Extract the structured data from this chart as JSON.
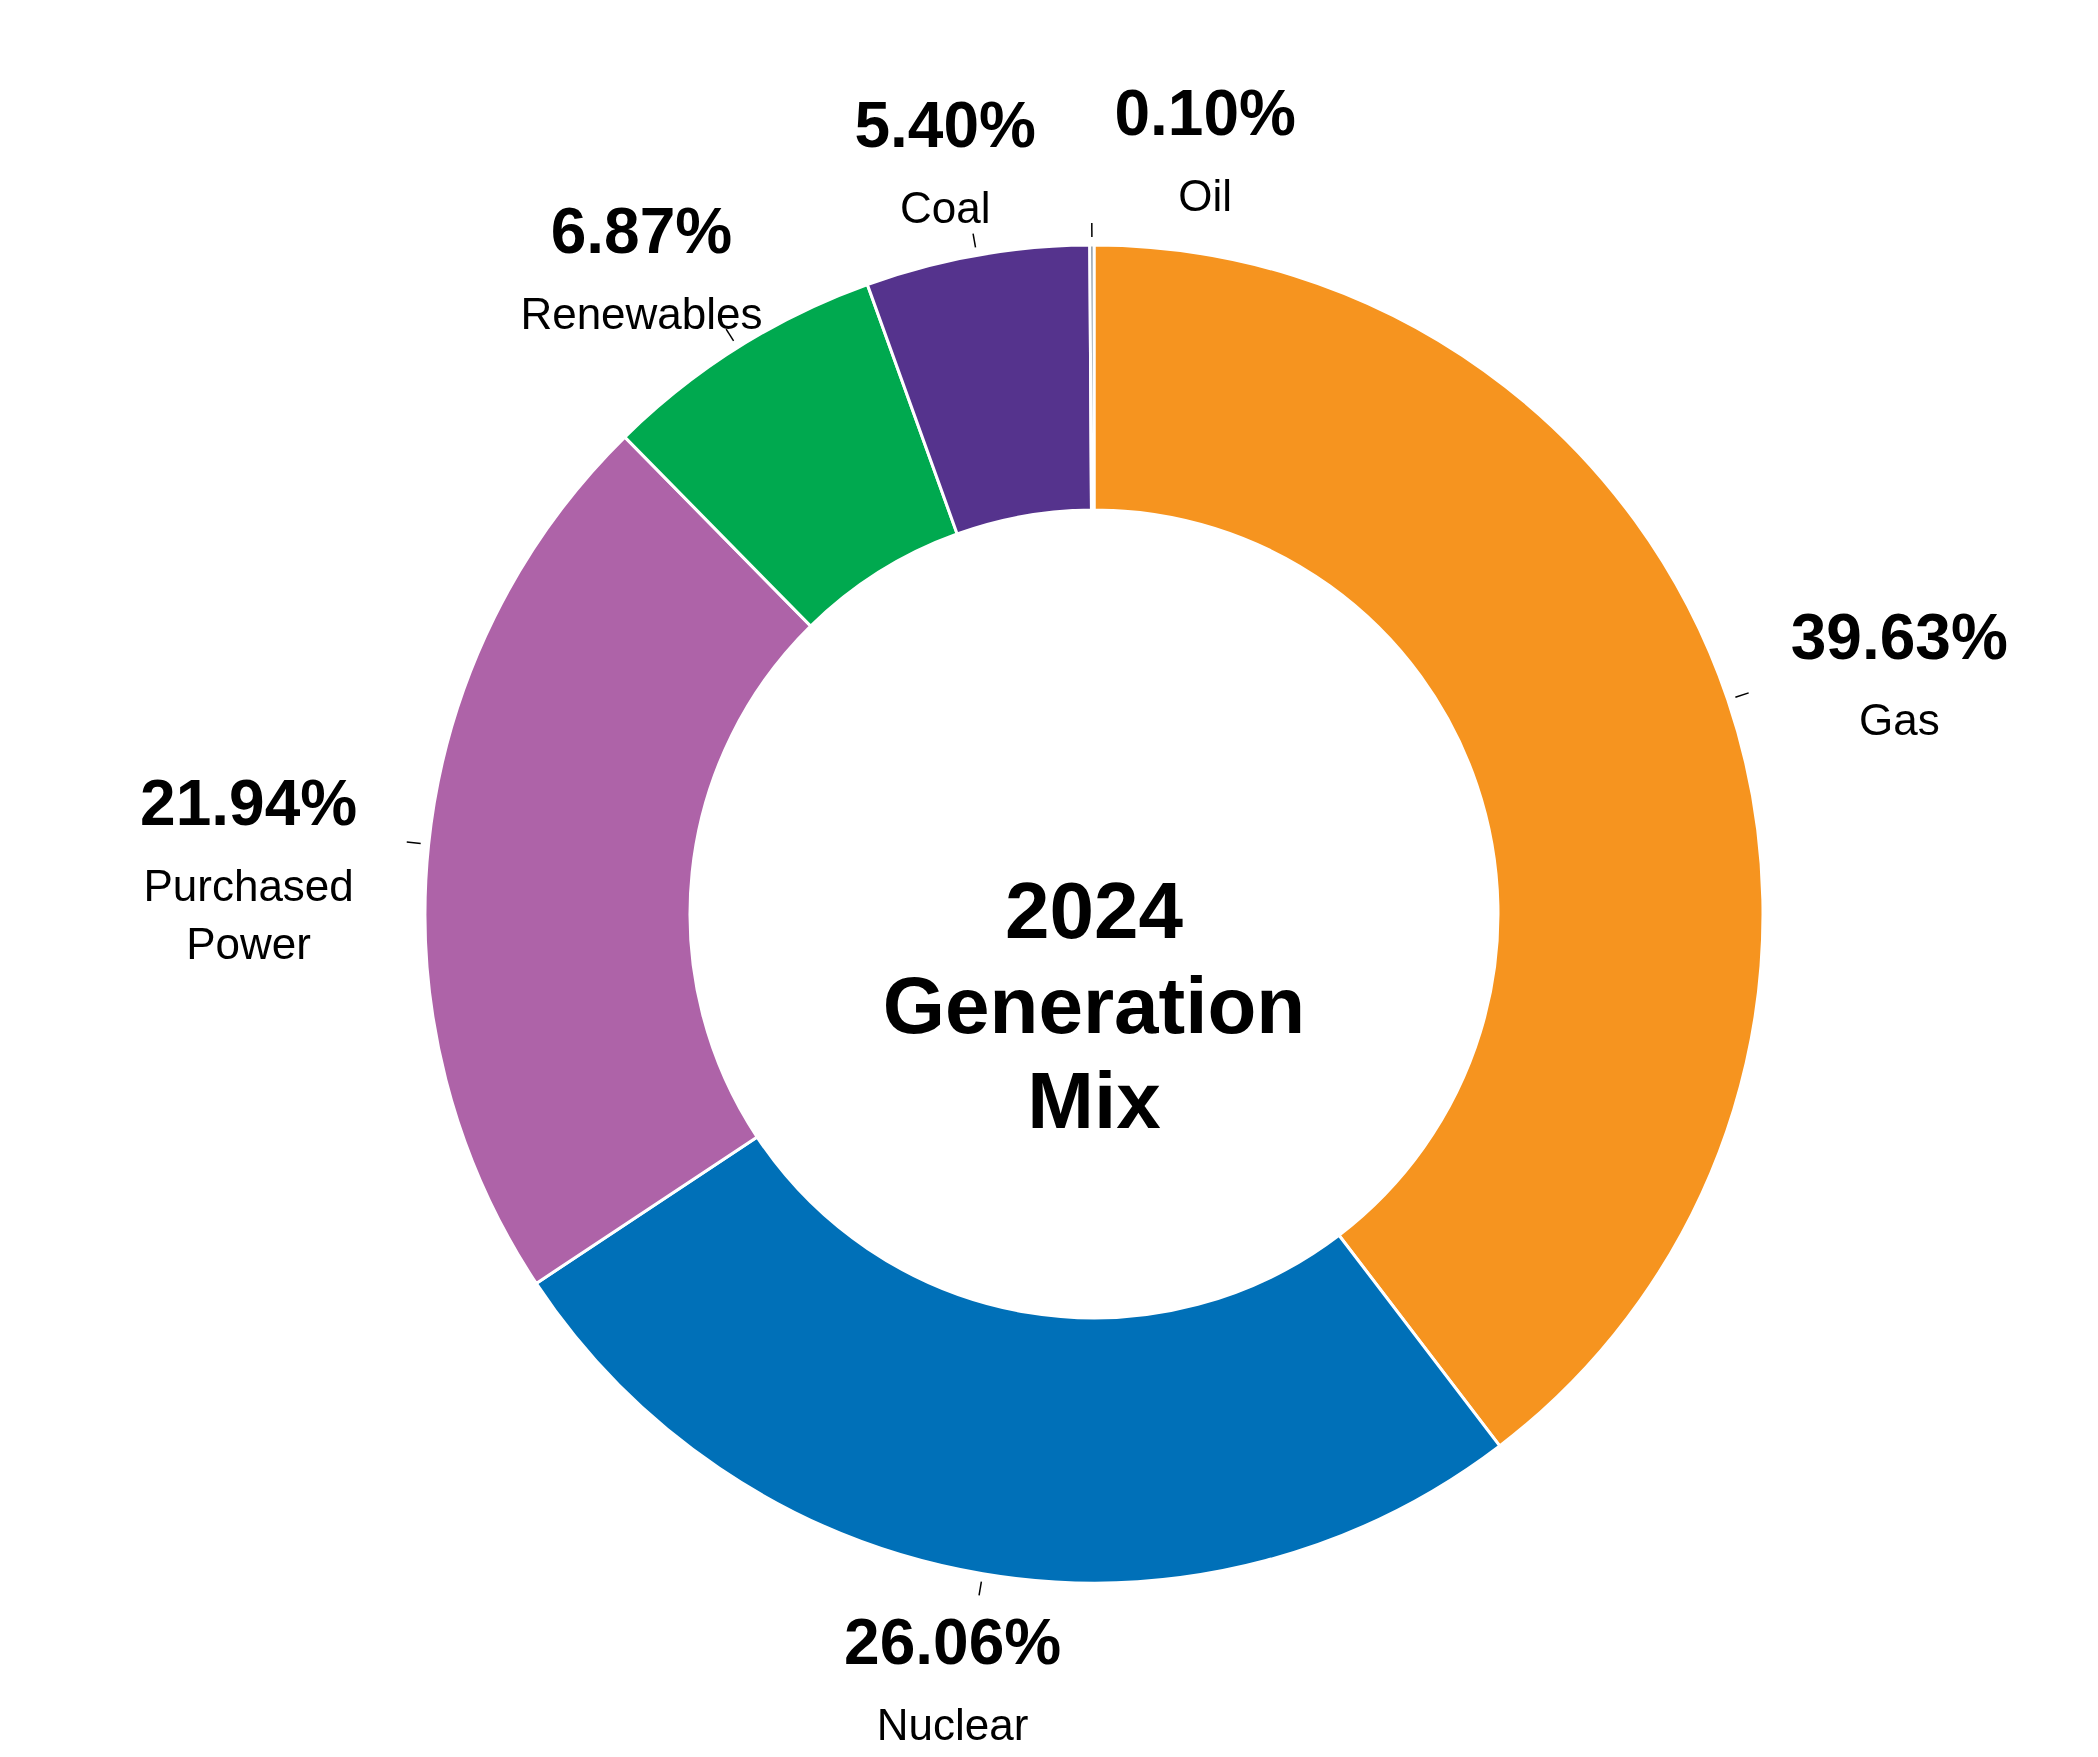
{
  "chart_data": {
    "type": "donut",
    "title": "2024 Generation Mix",
    "categories": [
      "Gas",
      "Nuclear",
      "Purchased Power",
      "Renewables",
      "Coal",
      "Oil"
    ],
    "values": [
      39.63,
      26.06,
      21.94,
      6.87,
      5.4,
      0.1
    ],
    "colors": [
      "#f6941f",
      "#0070b8",
      "#ae63a8",
      "#00a94f",
      "#55338d",
      "#6d7f8f"
    ],
    "value_labels": [
      "39.63%",
      "26.06%",
      "21.94%",
      "6.87%",
      "5.40%",
      "0.10%"
    ]
  }
}
